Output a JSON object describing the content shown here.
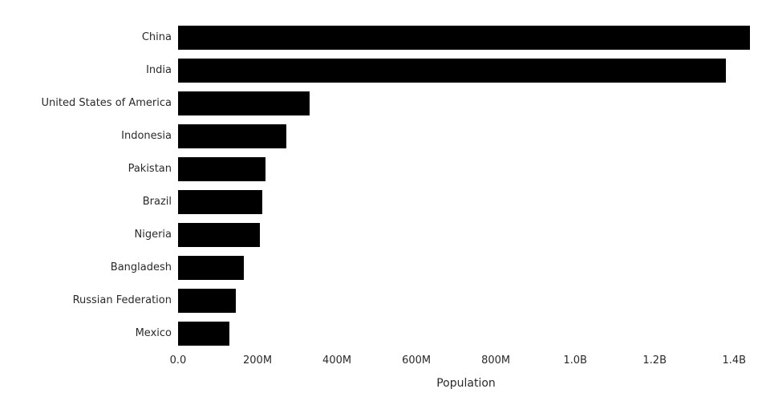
{
  "chart_data": {
    "type": "bar",
    "orientation": "horizontal",
    "title": "",
    "xlabel": "Population",
    "ylabel": "",
    "categories": [
      "China",
      "India",
      "United States of America",
      "Indonesia",
      "Pakistan",
      "Brazil",
      "Nigeria",
      "Bangladesh",
      "Russian Federation",
      "Mexico"
    ],
    "values": [
      1439000000,
      1380000000,
      331000000,
      273000000,
      221000000,
      212000000,
      206000000,
      165000000,
      146000000,
      129000000
    ],
    "xlim": [
      0,
      1450000000
    ],
    "xticks": [
      {
        "value": 0,
        "label": "0.0"
      },
      {
        "value": 200000000,
        "label": "200M"
      },
      {
        "value": 400000000,
        "label": "400M"
      },
      {
        "value": 600000000,
        "label": "600M"
      },
      {
        "value": 800000000,
        "label": "800M"
      },
      {
        "value": 1000000000,
        "label": "1.0B"
      },
      {
        "value": 1200000000,
        "label": "1.2B"
      },
      {
        "value": 1400000000,
        "label": "1.4B"
      }
    ],
    "bar_color": "#000000",
    "background": "#ffffff",
    "grid": false,
    "legend": null
  }
}
